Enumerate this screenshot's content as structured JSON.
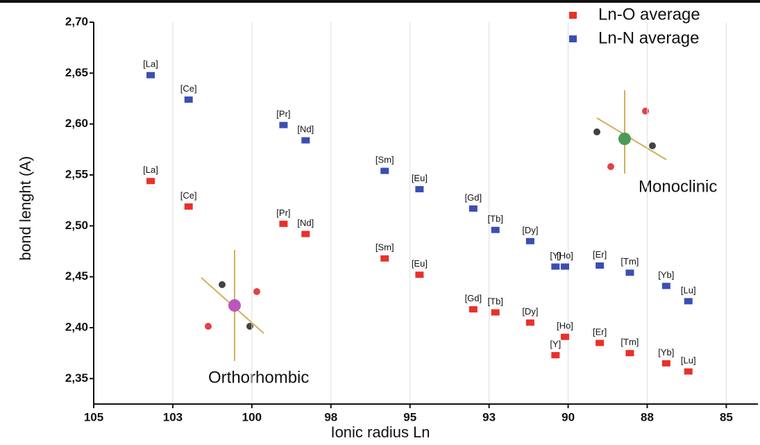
{
  "chart_data": {
    "type": "scatter",
    "x_label": "Ionic radius Ln",
    "y_label": "bond lenght (A)",
    "x": [
      103.2,
      102.0,
      99.0,
      98.3,
      95.8,
      94.7,
      93.0,
      92.3,
      91.2,
      90.4,
      90.1,
      89.0,
      88.05,
      86.9,
      86.2
    ],
    "labels": [
      "[La]",
      "[Ce]",
      "[Pr]",
      "[Nd]",
      "[Sm]",
      "[Eu]",
      "[Gd]",
      "[Tb]",
      "[Dy]",
      "[Y]",
      "[Ho]",
      "[Er]",
      "[Tm]",
      "[Yb]",
      "[Lu]"
    ],
    "series": [
      {
        "name": "Ln-O average",
        "color": "#e8312a",
        "values": [
          2.544,
          2.519,
          2.502,
          2.492,
          2.468,
          2.452,
          2.418,
          2.415,
          2.405,
          2.373,
          2.391,
          2.385,
          2.375,
          2.365,
          2.357
        ]
      },
      {
        "name": "Ln-N average",
        "color": "#3a4fb3",
        "values": [
          2.648,
          2.624,
          2.599,
          2.584,
          2.554,
          2.536,
          2.517,
          2.496,
          2.485,
          2.46,
          2.46,
          2.461,
          2.454,
          2.441,
          2.426
        ]
      }
    ],
    "xlim": [
      105,
      84
    ],
    "ylim": [
      2.325,
      2.7
    ],
    "xticks": [
      105,
      {
        "value": 102.5,
        "label": "103"
      },
      100,
      {
        "value": 97.5,
        "label": "98"
      },
      95,
      {
        "value": 92.5,
        "label": "93"
      },
      90,
      {
        "value": 87.5,
        "label": "88"
      },
      85
    ],
    "yticks": [
      {
        "value": 2.35,
        "label": "2,35"
      },
      {
        "value": 2.4,
        "label": "2,40"
      },
      {
        "value": 2.45,
        "label": "2,45"
      },
      {
        "value": 2.5,
        "label": "2,50"
      },
      {
        "value": 2.55,
        "label": "2,55"
      },
      {
        "value": 2.6,
        "label": "2,60"
      },
      {
        "value": 2.65,
        "label": "2,65"
      },
      {
        "value": 2.7,
        "label": "2,70"
      }
    ],
    "grid": true,
    "legend": "top-right",
    "annotations": [
      "Orthorhombic",
      "Monoclinic"
    ]
  }
}
